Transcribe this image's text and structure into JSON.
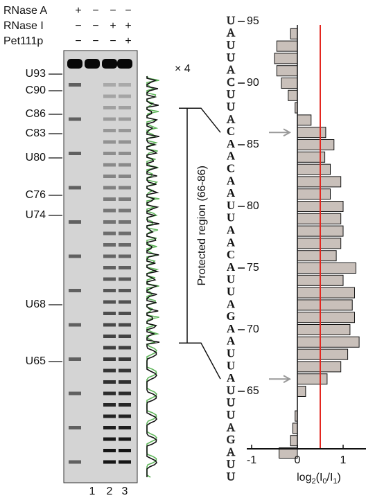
{
  "gel": {
    "treatments": [
      {
        "label": "RNase A",
        "signs": [
          "+",
          "−",
          "−",
          "−"
        ]
      },
      {
        "label": "RNase I",
        "signs": [
          "−",
          "−",
          "+",
          "+"
        ]
      },
      {
        "label": "Pet111p",
        "signs": [
          "−",
          "−",
          "−",
          "+"
        ]
      }
    ],
    "band_labels": [
      "U93",
      "C90",
      "C86",
      "C83",
      "U80",
      "C76",
      "U74",
      "U68",
      "U65"
    ],
    "lane_labels": [
      "1",
      "2",
      "3"
    ],
    "trace_annotation": "× 4",
    "region_label": "Protected region (66-86)"
  },
  "chart_data": {
    "type": "barh",
    "sequence": [
      "U",
      "A",
      "U",
      "U",
      "A",
      "C",
      "U",
      "U",
      "A",
      "C",
      "A",
      "A",
      "C",
      "A",
      "A",
      "U",
      "U",
      "A",
      "A",
      "C",
      "A",
      "U",
      "U",
      "A",
      "G",
      "A",
      "A",
      "U",
      "U",
      "A",
      "U",
      "U",
      "U",
      "A",
      "G",
      "A",
      "U",
      "U"
    ],
    "y": [
      95,
      94,
      93,
      92,
      91,
      90,
      89,
      88,
      87,
      86,
      85,
      84,
      83,
      82,
      81,
      80,
      79,
      78,
      77,
      76,
      75,
      74,
      73,
      72,
      71,
      70,
      69,
      68,
      67,
      66,
      65,
      64,
      63,
      62,
      61,
      60,
      59,
      58
    ],
    "values": [
      null,
      -0.15,
      -0.45,
      -0.5,
      -0.45,
      -0.35,
      -0.2,
      -0.05,
      0.3,
      0.62,
      0.8,
      0.6,
      0.72,
      0.95,
      0.72,
      1.0,
      0.95,
      1.0,
      0.95,
      0.85,
      1.28,
      1.0,
      1.25,
      1.2,
      1.25,
      1.15,
      1.35,
      1.1,
      0.95,
      0.65,
      0.18,
      null,
      -0.05,
      -0.1,
      -0.15,
      -0.4,
      null,
      null
    ],
    "ylim": [
      95,
      58
    ],
    "yticks": [
      95,
      90,
      85,
      80,
      75,
      70,
      65
    ],
    "xlim": [
      -1,
      1.5
    ],
    "xticks": [
      -1,
      0,
      1
    ],
    "x_label": [
      "log",
      "2",
      "(I",
      "0",
      "/I",
      "1",
      ")"
    ],
    "highlight": [
      66,
      86
    ],
    "reference": 0.5,
    "color": "#c9c0ba",
    "reference_color": "#e3261f"
  }
}
